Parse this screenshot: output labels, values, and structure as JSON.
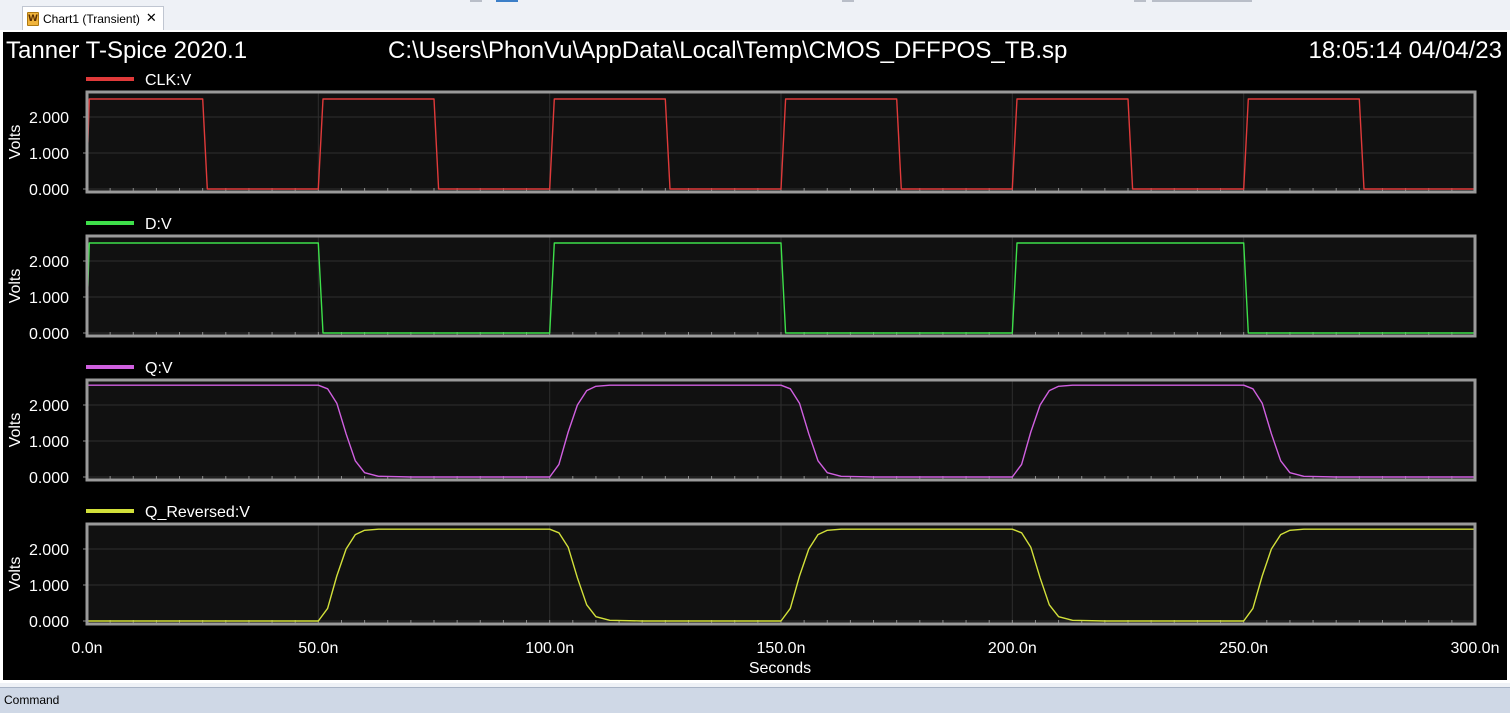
{
  "tab": {
    "label": "Chart1 (Transient)",
    "icon": "waveform-file-icon",
    "close_glyph": "✕"
  },
  "header": {
    "app": "Tanner T-Spice 2020.1",
    "file": "C:\\Users\\PhonVu\\AppData\\Local\\Temp\\CMOS_DFFPOS_TB.sp",
    "timestamp": "18:05:14 04/04/23"
  },
  "command_bar": {
    "label": "Command"
  },
  "chart_data": {
    "type": "line",
    "xlabel": "Seconds",
    "x_unit": "s",
    "xlim": [
      0,
      3e-07
    ],
    "x_ticks": [
      0,
      5e-08,
      1e-07,
      1.5e-07,
      2e-07,
      2.5e-07,
      3e-07
    ],
    "x_tick_labels": [
      "0.0n",
      "50.0n",
      "100.0n",
      "150.0n",
      "200.0n",
      "250.0n",
      "300.0n"
    ],
    "grid": true,
    "background": "#000000",
    "panels": [
      {
        "name": "CLK:V",
        "color": "#e03a3a",
        "ylabel": "Volts",
        "ylim": [
          0,
          2.5
        ],
        "y_ticks": [
          0,
          1,
          2
        ],
        "y_tick_labels": [
          "0.000",
          "1.000",
          "2.000"
        ],
        "x": [
          0,
          2e-10,
          5e-10,
          2.5e-08,
          2.6e-08,
          5e-08,
          5.1e-08,
          7.5e-08,
          7.6e-08,
          1e-07,
          1.01e-07,
          1.25e-07,
          1.26e-07,
          1.5e-07,
          1.51e-07,
          1.75e-07,
          1.76e-07,
          2e-07,
          2.01e-07,
          2.25e-07,
          2.26e-07,
          2.5e-07,
          2.51e-07,
          2.75e-07,
          2.76e-07,
          3e-07
        ],
        "y": [
          1.2,
          1.3,
          2.5,
          2.5,
          0,
          0,
          2.5,
          2.5,
          0,
          0,
          2.5,
          2.5,
          0,
          0,
          2.5,
          2.5,
          0,
          0,
          2.5,
          2.5,
          0,
          0,
          2.5,
          2.5,
          0,
          0
        ]
      },
      {
        "name": "D:V",
        "color": "#3ee04a",
        "ylabel": "Volts",
        "ylim": [
          0,
          2.5
        ],
        "y_ticks": [
          0,
          1,
          2
        ],
        "y_tick_labels": [
          "0.000",
          "1.000",
          "2.000"
        ],
        "x": [
          0,
          2e-10,
          5e-10,
          5e-08,
          5.1e-08,
          1e-07,
          1.01e-07,
          1.5e-07,
          1.51e-07,
          2e-07,
          2.01e-07,
          2.5e-07,
          2.51e-07,
          3e-07
        ],
        "y": [
          1.2,
          1.3,
          2.5,
          2.5,
          0,
          0,
          2.5,
          2.5,
          0,
          0,
          2.5,
          2.5,
          0,
          0
        ]
      },
      {
        "name": "Q:V",
        "color": "#d060e0",
        "ylabel": "Volts",
        "ylim": [
          0,
          2.5
        ],
        "y_ticks": [
          0,
          1,
          2
        ],
        "y_tick_labels": [
          "0.000",
          "1.000",
          "2.000"
        ],
        "x": [
          0,
          5e-08,
          5.2e-08,
          5.4e-08,
          5.6e-08,
          5.8e-08,
          6e-08,
          6.3e-08,
          7e-08,
          1e-07,
          1.02e-07,
          1.04e-07,
          1.06e-07,
          1.08e-07,
          1.1e-07,
          1.13e-07,
          1.2e-07,
          1.5e-07,
          1.52e-07,
          1.54e-07,
          1.56e-07,
          1.58e-07,
          1.6e-07,
          1.63e-07,
          1.7e-07,
          2e-07,
          2.02e-07,
          2.04e-07,
          2.06e-07,
          2.08e-07,
          2.1e-07,
          2.13e-07,
          2.2e-07,
          2.5e-07,
          2.52e-07,
          2.54e-07,
          2.56e-07,
          2.58e-07,
          2.6e-07,
          2.63e-07,
          2.7e-07,
          3e-07
        ],
        "y": [
          2.55,
          2.55,
          2.45,
          2.05,
          1.2,
          0.45,
          0.12,
          0.02,
          0,
          0,
          0.35,
          1.25,
          2.0,
          2.4,
          2.52,
          2.55,
          2.55,
          2.55,
          2.45,
          2.05,
          1.2,
          0.45,
          0.12,
          0.02,
          0,
          0,
          0.35,
          1.25,
          2.0,
          2.4,
          2.52,
          2.55,
          2.55,
          2.55,
          2.45,
          2.05,
          1.2,
          0.45,
          0.12,
          0.02,
          0,
          0
        ]
      },
      {
        "name": "Q_Reversed:V",
        "color": "#d2e03a",
        "ylabel": "Volts",
        "ylim": [
          0,
          2.5
        ],
        "y_ticks": [
          0,
          1,
          2
        ],
        "y_tick_labels": [
          "0.000",
          "1.000",
          "2.000"
        ],
        "x": [
          0,
          5e-08,
          5.2e-08,
          5.4e-08,
          5.6e-08,
          5.8e-08,
          6e-08,
          6.3e-08,
          7e-08,
          1e-07,
          1.02e-07,
          1.04e-07,
          1.06e-07,
          1.08e-07,
          1.1e-07,
          1.13e-07,
          1.2e-07,
          1.5e-07,
          1.52e-07,
          1.54e-07,
          1.56e-07,
          1.58e-07,
          1.6e-07,
          1.63e-07,
          1.7e-07,
          2e-07,
          2.02e-07,
          2.04e-07,
          2.06e-07,
          2.08e-07,
          2.1e-07,
          2.13e-07,
          2.2e-07,
          2.5e-07,
          2.52e-07,
          2.54e-07,
          2.56e-07,
          2.58e-07,
          2.6e-07,
          2.63e-07,
          2.7e-07,
          3e-07
        ],
        "y": [
          0,
          0,
          0.35,
          1.25,
          2.0,
          2.4,
          2.52,
          2.55,
          2.55,
          2.55,
          2.45,
          2.05,
          1.2,
          0.45,
          0.12,
          0.02,
          0,
          0,
          0.35,
          1.25,
          2.0,
          2.4,
          2.52,
          2.55,
          2.55,
          2.55,
          2.45,
          2.05,
          1.2,
          0.45,
          0.12,
          0.02,
          0,
          0,
          0.35,
          1.25,
          2.0,
          2.4,
          2.52,
          2.55,
          2.55,
          2.55
        ]
      }
    ]
  }
}
